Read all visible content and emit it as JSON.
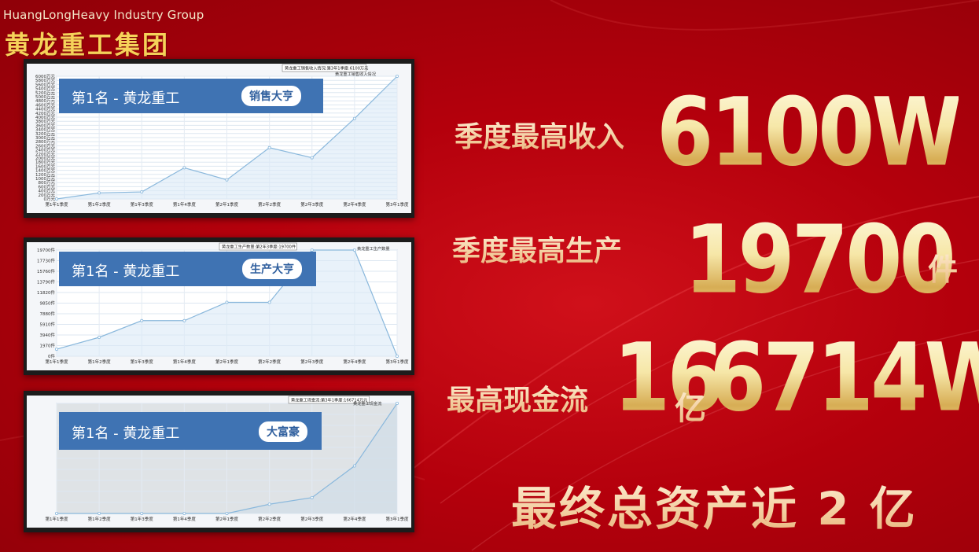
{
  "brand": {
    "en": "HuangLongHeavy Industry Group",
    "cn": "黄龙重工集团"
  },
  "panels": [
    {
      "rank_title": "第1名 - 黄龙重工",
      "badge": "销售大亨",
      "tooltip": "黄龙重工销售收入情况:第3年1季度:6100万元",
      "legend": "黄龙重工销售收入情况",
      "x": [
        "第1年1季度",
        "第1年2季度",
        "第1年3季度",
        "第1年4季度",
        "第2年1季度",
        "第2年2季度",
        "第2年3季度",
        "第2年4季度",
        "第3年1季度"
      ],
      "y": [
        0,
        300,
        350,
        1550,
        950,
        2550,
        2050,
        4000,
        6100
      ],
      "ymax": 6100,
      "yticks": [
        "0万元",
        "200万元",
        "400万元",
        "600万元",
        "800万元",
        "1000万元",
        "1200万元",
        "1400万元",
        "1600万元",
        "1800万元",
        "2000万元",
        "2200万元",
        "2400万元",
        "2600万元",
        "2800万元",
        "3000万元",
        "3200万元",
        "3400万元",
        "3600万元",
        "3800万元",
        "4000万元",
        "4200万元",
        "4400万元",
        "4600万元",
        "4800万元",
        "5000万元",
        "5200万元",
        "5400万元",
        "5600万元",
        "5800万元",
        "6000万元"
      ]
    },
    {
      "rank_title": "第1名 - 黄龙重工",
      "badge": "生产大亨",
      "tooltip": "黄龙重工生产数量:第2年3季度:19700件",
      "legend": "黄龙重工生产数量",
      "x": [
        "第1年1季度",
        "第1年2季度",
        "第1年3季度",
        "第1年4季度",
        "第2年1季度",
        "第2年2季度",
        "第2年3季度",
        "第2年4季度",
        "第3年1季度"
      ],
      "y": [
        1300,
        3500,
        6600,
        6600,
        10000,
        10000,
        19700,
        19700,
        0
      ],
      "ymax": 19700,
      "yticks": [
        "0件",
        "1970件",
        "3940件",
        "5910件",
        "7880件",
        "9850件",
        "11820件",
        "13790件",
        "15760件",
        "17730件",
        "19700件"
      ]
    },
    {
      "rank_title": "第1名 - 黄龙重工",
      "badge": "大富豪",
      "tooltip": "黄龙重工现金流:第3年1季度:166714万元",
      "legend": "黄龙重工现金流",
      "x": [
        "第1年1季度",
        "第1年2季度",
        "第1年3季度",
        "第1年4季度",
        "第2年1季度",
        "第2年2季度",
        "第2年3季度",
        "第2年4季度",
        "第3年1季度"
      ],
      "y": [
        0,
        0,
        0,
        0,
        0,
        14000,
        24000,
        72000,
        166714
      ],
      "ymax": 166714,
      "yticks": []
    }
  ],
  "stats": {
    "revenue_label": "季度最高收入",
    "revenue_value": "6100W",
    "production_label": "季度最高生产",
    "production_value": "19700",
    "production_unit": "件",
    "cash_label": "最高现金流",
    "cash_value_a": "16",
    "cash_unit_a": "亿",
    "cash_value_b": "6714W",
    "total_text": "最终总资产近 2 亿"
  }
}
